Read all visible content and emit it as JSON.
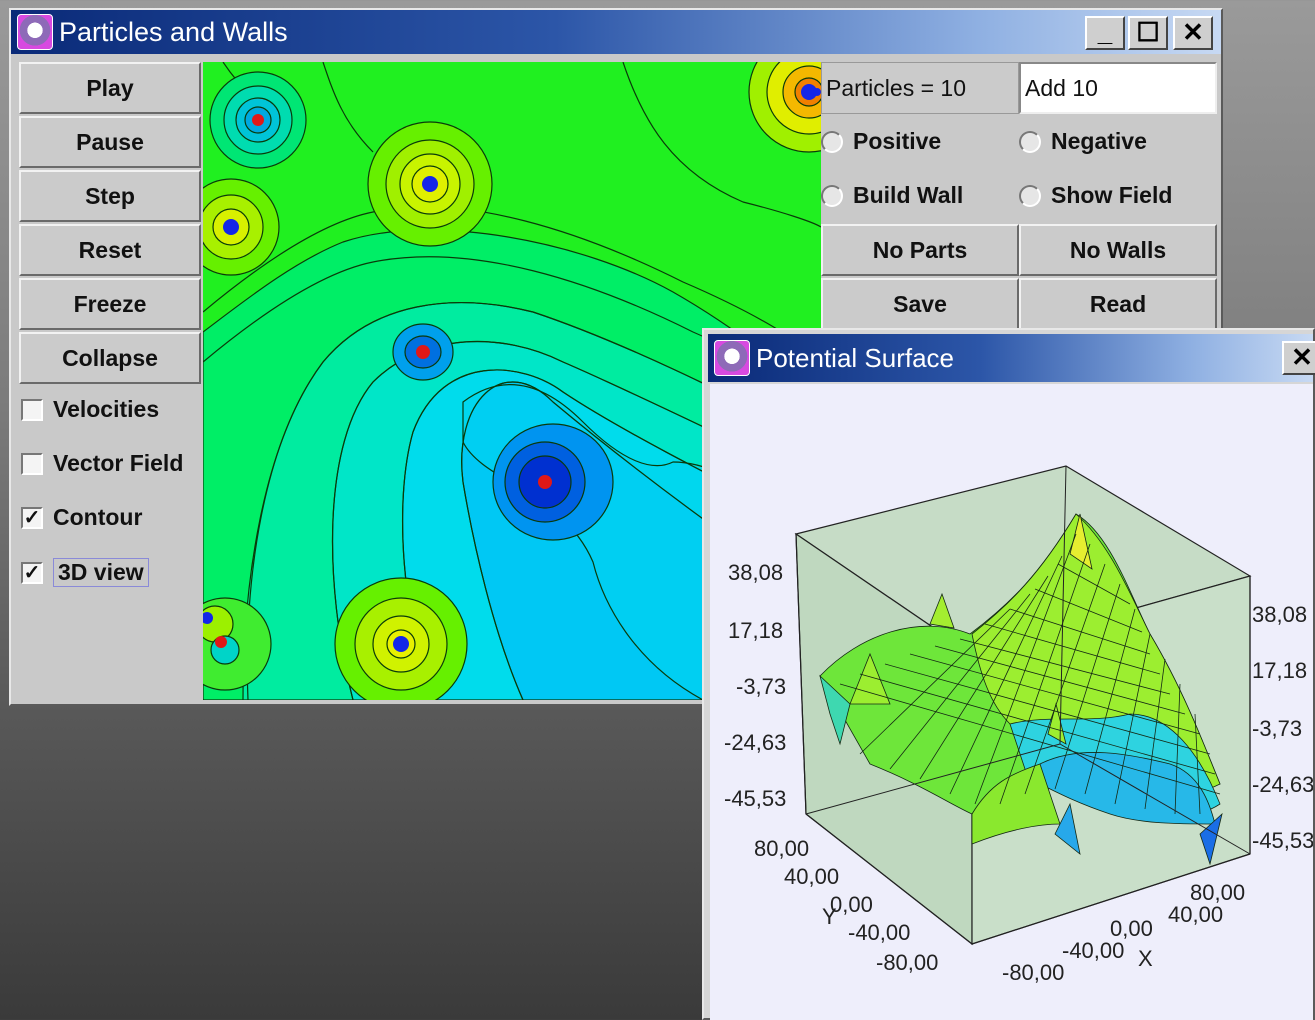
{
  "main_window": {
    "title": "Particles and Walls",
    "controls": {
      "minimize": "_",
      "maximize": "☐",
      "close": "✕"
    },
    "left_buttons": [
      "Play",
      "Pause",
      "Step",
      "Reset",
      "Freeze",
      "Collapse"
    ],
    "checkboxes": [
      {
        "label": "Velocities",
        "checked": false
      },
      {
        "label": "Vector Field",
        "checked": false
      },
      {
        "label": "Contour",
        "checked": true
      },
      {
        "label": "3D view",
        "checked": true
      }
    ],
    "particles_label": "Particles = 10",
    "add_field_value": "Add 10",
    "radios": [
      "Positive",
      "Negative",
      "Build Wall",
      "Show Field"
    ],
    "right_buttons": [
      "No Parts",
      "No Walls",
      "Save",
      "Read"
    ]
  },
  "surface_window": {
    "title": "Potential Surface",
    "close": "✕",
    "z_ticks_left": [
      "38,08",
      "17,18",
      "-3,73",
      "-24,63",
      "-45,53"
    ],
    "z_ticks_right": [
      "38,08",
      "17,18",
      "-3,73",
      "-24,63",
      "-45,53"
    ],
    "y_ticks": [
      "80,00",
      "40,00",
      "0,00",
      "-40,00",
      "-80,00"
    ],
    "x_ticks": [
      "-80,00",
      "-40,00",
      "0,00",
      "40,00",
      "80,00"
    ],
    "y_axis_label": "Y",
    "x_axis_label": "X"
  },
  "particles": [
    {
      "charge": "negative",
      "color": "#d81a1a"
    },
    {
      "charge": "positive",
      "color": "#1a2ae0"
    },
    {
      "charge": "positive",
      "color": "#1a2ae0"
    },
    {
      "charge": "positive",
      "color": "#1a2ae0"
    },
    {
      "charge": "negative",
      "color": "#d81a1a"
    },
    {
      "charge": "negative",
      "color": "#d81a1a"
    },
    {
      "charge": "positive",
      "color": "#1a2ae0"
    },
    {
      "charge": "negative",
      "color": "#d81a1a"
    },
    {
      "charge": "positive",
      "color": "#1a2ae0"
    },
    {
      "charge": "positive",
      "color": "#1a2ae0"
    }
  ],
  "colors": {
    "title_gradient_start": "#0a2a78",
    "title_gradient_end": "#c7d9f3",
    "window_face": "#c9c9c9",
    "plot_background": "#eeeefb",
    "box_face": "#c8dec8"
  }
}
